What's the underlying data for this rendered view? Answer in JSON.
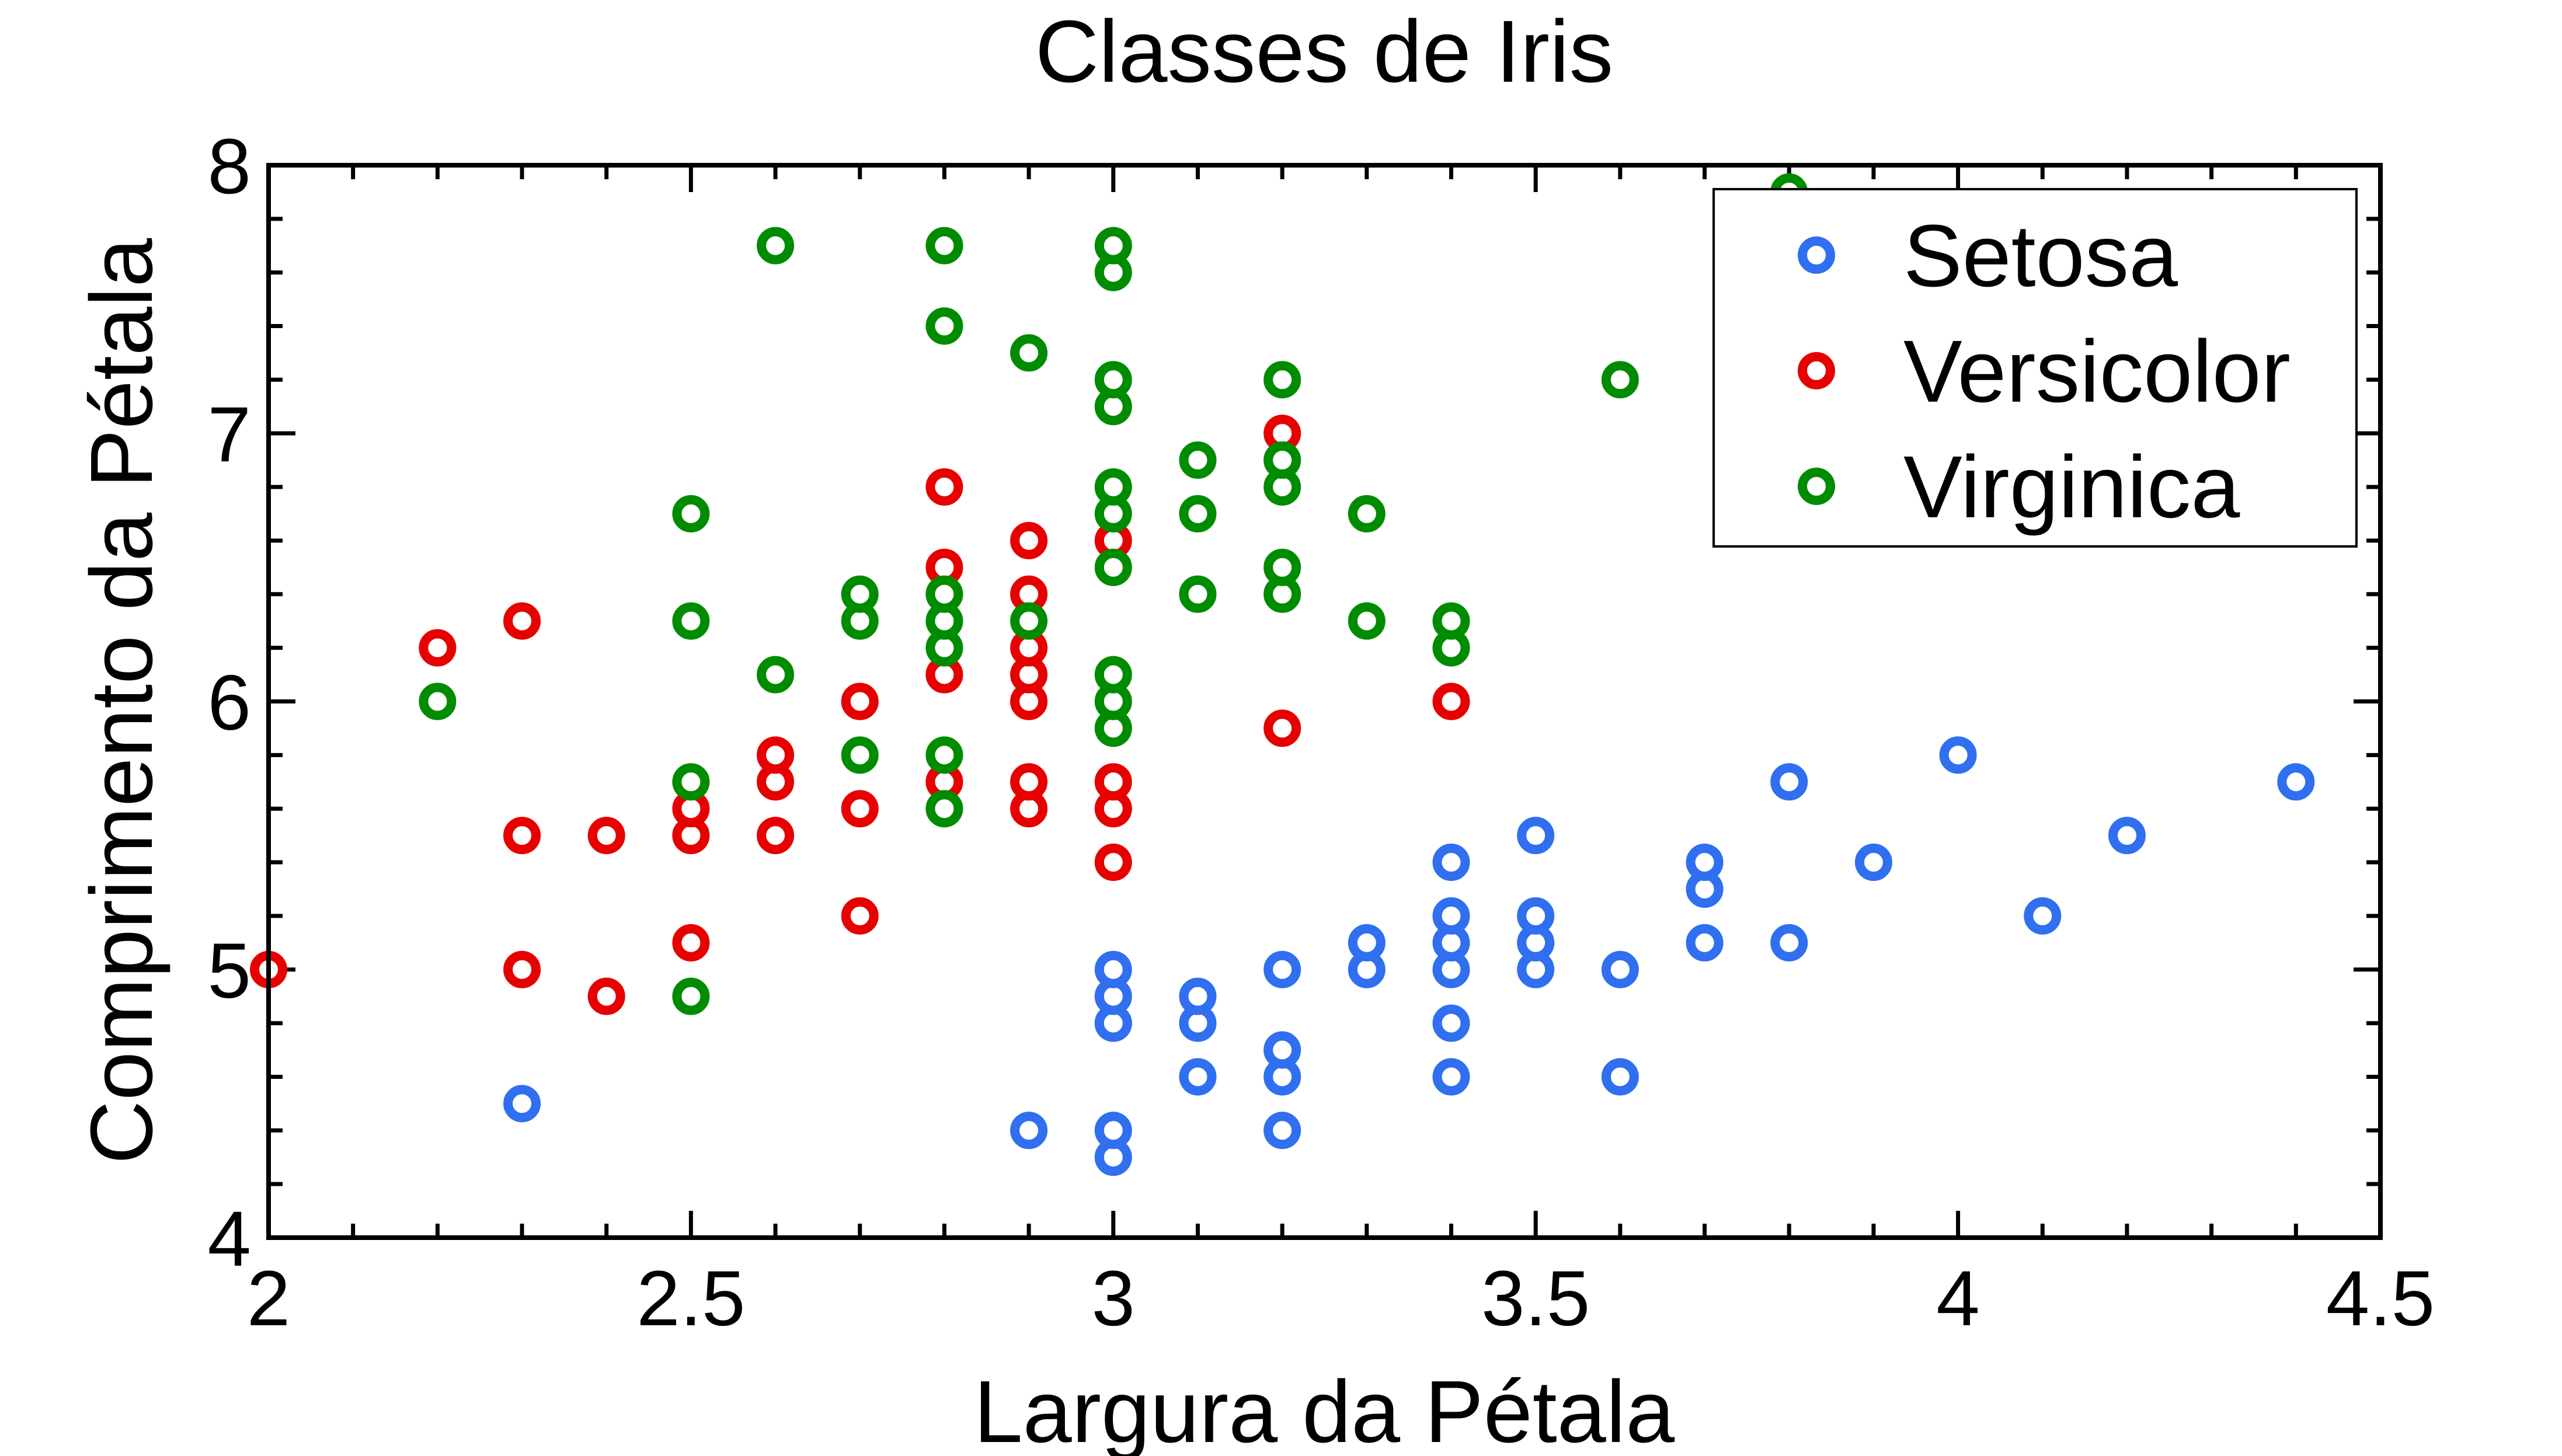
{
  "chart_data": {
    "type": "scatter",
    "title": "Classes de Iris",
    "xlabel": "Largura da Pétala",
    "ylabel": "Comprimento da Pétala",
    "xlim": [
      2,
      4.5
    ],
    "ylim": [
      4,
      8
    ],
    "xticks": [
      "2",
      "2.5",
      "3",
      "3.5",
      "4",
      "4.5"
    ],
    "yticks": [
      "4",
      "5",
      "6",
      "7",
      "8"
    ],
    "grid": false,
    "legend_position": "top-right",
    "series": [
      {
        "name": "Setosa",
        "color": "#2f6ff0",
        "points": [
          [
            2.3,
            4.5
          ],
          [
            2.9,
            4.4
          ],
          [
            3.0,
            4.3
          ],
          [
            3.0,
            4.4
          ],
          [
            3.0,
            4.8
          ],
          [
            3.0,
            4.8
          ],
          [
            3.0,
            4.9
          ],
          [
            3.0,
            5.0
          ],
          [
            3.1,
            4.6
          ],
          [
            3.1,
            4.8
          ],
          [
            3.1,
            4.9
          ],
          [
            3.2,
            4.4
          ],
          [
            3.2,
            4.6
          ],
          [
            3.2,
            4.7
          ],
          [
            3.2,
            5.0
          ],
          [
            3.3,
            5.0
          ],
          [
            3.3,
            5.1
          ],
          [
            3.4,
            4.6
          ],
          [
            3.4,
            4.8
          ],
          [
            3.4,
            5.0
          ],
          [
            3.4,
            5.1
          ],
          [
            3.4,
            5.2
          ],
          [
            3.4,
            5.4
          ],
          [
            3.5,
            5.0
          ],
          [
            3.5,
            5.1
          ],
          [
            3.5,
            5.2
          ],
          [
            3.5,
            5.5
          ],
          [
            3.6,
            4.6
          ],
          [
            3.6,
            5.0
          ],
          [
            3.7,
            5.1
          ],
          [
            3.7,
            5.3
          ],
          [
            3.7,
            5.4
          ],
          [
            3.8,
            5.1
          ],
          [
            3.8,
            5.7
          ],
          [
            3.9,
            5.4
          ],
          [
            4.0,
            5.8
          ],
          [
            4.1,
            5.2
          ],
          [
            4.2,
            5.5
          ],
          [
            4.4,
            5.7
          ]
        ]
      },
      {
        "name": "Versicolor",
        "color": "#e60000",
        "points": [
          [
            2.0,
            5.0
          ],
          [
            2.2,
            6.2
          ],
          [
            2.3,
            5.0
          ],
          [
            2.3,
            5.5
          ],
          [
            2.3,
            6.3
          ],
          [
            2.4,
            4.9
          ],
          [
            2.4,
            5.5
          ],
          [
            2.5,
            5.1
          ],
          [
            2.5,
            5.5
          ],
          [
            2.5,
            5.6
          ],
          [
            2.6,
            5.5
          ],
          [
            2.6,
            5.7
          ],
          [
            2.6,
            5.8
          ],
          [
            2.7,
            5.2
          ],
          [
            2.7,
            5.6
          ],
          [
            2.7,
            6.0
          ],
          [
            2.8,
            5.7
          ],
          [
            2.8,
            6.1
          ],
          [
            2.8,
            6.5
          ],
          [
            2.8,
            6.8
          ],
          [
            2.9,
            5.6
          ],
          [
            2.9,
            5.7
          ],
          [
            2.9,
            6.0
          ],
          [
            2.9,
            6.1
          ],
          [
            2.9,
            6.2
          ],
          [
            2.9,
            6.4
          ],
          [
            2.9,
            6.6
          ],
          [
            3.0,
            5.4
          ],
          [
            3.0,
            5.6
          ],
          [
            3.0,
            5.7
          ],
          [
            3.0,
            6.6
          ],
          [
            3.2,
            5.9
          ],
          [
            3.2,
            7.0
          ],
          [
            3.4,
            6.0
          ]
        ]
      },
      {
        "name": "Virginica",
        "color": "#008c00",
        "points": [
          [
            2.2,
            6.0
          ],
          [
            2.5,
            4.9
          ],
          [
            2.5,
            5.7
          ],
          [
            2.5,
            6.3
          ],
          [
            2.5,
            6.7
          ],
          [
            2.6,
            6.1
          ],
          [
            2.6,
            7.7
          ],
          [
            2.7,
            5.8
          ],
          [
            2.7,
            6.3
          ],
          [
            2.7,
            6.4
          ],
          [
            2.8,
            5.6
          ],
          [
            2.8,
            5.8
          ],
          [
            2.8,
            6.2
          ],
          [
            2.8,
            6.3
          ],
          [
            2.8,
            6.4
          ],
          [
            2.8,
            7.4
          ],
          [
            2.8,
            7.7
          ],
          [
            2.9,
            6.3
          ],
          [
            2.9,
            7.3
          ],
          [
            3.0,
            5.9
          ],
          [
            3.0,
            6.0
          ],
          [
            3.0,
            6.1
          ],
          [
            3.0,
            6.5
          ],
          [
            3.0,
            6.7
          ],
          [
            3.0,
            6.8
          ],
          [
            3.0,
            7.1
          ],
          [
            3.0,
            7.2
          ],
          [
            3.0,
            7.6
          ],
          [
            3.0,
            7.7
          ],
          [
            3.1,
            6.4
          ],
          [
            3.1,
            6.7
          ],
          [
            3.1,
            6.9
          ],
          [
            3.2,
            6.4
          ],
          [
            3.2,
            6.5
          ],
          [
            3.2,
            6.8
          ],
          [
            3.2,
            6.9
          ],
          [
            3.2,
            7.2
          ],
          [
            3.3,
            6.3
          ],
          [
            3.3,
            6.7
          ],
          [
            3.4,
            6.2
          ],
          [
            3.4,
            6.3
          ],
          [
            3.6,
            7.2
          ],
          [
            3.8,
            7.9
          ]
        ]
      }
    ]
  }
}
